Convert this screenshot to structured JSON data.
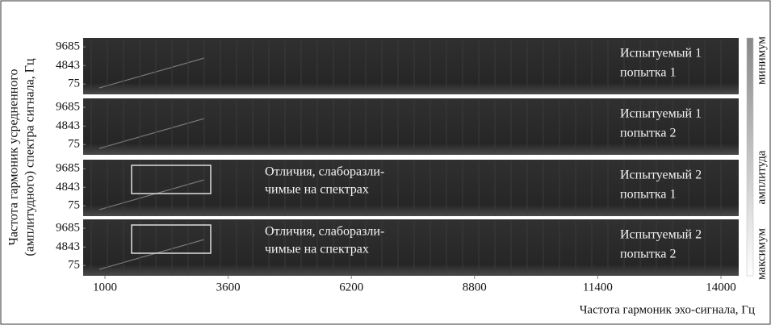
{
  "chart_data": {
    "type": "spectrogram",
    "ylabel": [
      "Частота гармоник усредненного",
      "(амплитудного) спектра сигнала, Гц"
    ],
    "xlabel": "Частота гармоник эхо-сигнала, Гц",
    "xlim": [
      540,
      14375
    ],
    "xticks": [
      1000,
      3600,
      6200,
      8800,
      11400,
      14000
    ],
    "ylim": [
      -2600,
      12000
    ],
    "yticks": [
      75,
      4843,
      9685
    ],
    "colorbar": [
      "максимум",
      "амплитуда",
      "минимум"
    ],
    "panels": [
      {
        "label": [
          "Испытуемый 1",
          "попытка 1"
        ]
      },
      {
        "label": [
          "Испытуемый 1",
          "попытка 2"
        ]
      },
      {
        "label": [
          "Испытуемый 2",
          "попытка 1"
        ],
        "annotation": [
          "Отличия, слаборазли-",
          "чимые на спектрах"
        ]
      },
      {
        "label": [
          "Испытуемый 2",
          "попытка 2"
        ],
        "annotation": [
          "Отличия, слаборазли-",
          "чимые на спектрах"
        ]
      }
    ]
  }
}
